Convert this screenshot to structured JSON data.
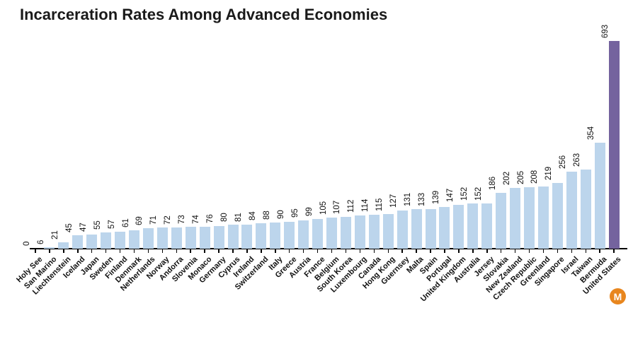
{
  "chart_data": {
    "type": "bar",
    "title": "Incarceration Rates Among Advanced Economies",
    "categories": [
      "Holy See",
      "San Marino",
      "Liechtenstein",
      "Iceland",
      "Japan",
      "Sweden",
      "Finland",
      "Denmark",
      "Netherlands",
      "Norway",
      "Andorra",
      "Slovenia",
      "Monaco",
      "Germany",
      "Cyprus",
      "Ireland",
      "Switzerland",
      "Italy",
      "Greece",
      "Austria",
      "France",
      "Belgium",
      "South Korea",
      "Luxembourg",
      "Canada",
      "Hong Kong",
      "Guernsey",
      "Malta",
      "Spain",
      "Portugal",
      "United Kingdom",
      "Australia",
      "Jersey",
      "Slovakia",
      "New Zealand",
      "Czech Republic",
      "Greenland",
      "Singapore",
      "Israel",
      "Taiwan",
      "Bermuda",
      "United States"
    ],
    "values": [
      0,
      6,
      21,
      45,
      47,
      55,
      57,
      61,
      69,
      71,
      72,
      73,
      74,
      76,
      80,
      81,
      84,
      88,
      90,
      95,
      99,
      105,
      107,
      112,
      114,
      115,
      127,
      131,
      133,
      139,
      147,
      152,
      152,
      186,
      202,
      205,
      208,
      219,
      256,
      263,
      354,
      693
    ],
    "xlabel": "",
    "ylabel": "",
    "ylim": [
      0,
      700
    ],
    "grid": false,
    "legend": "none",
    "bar_color": "#bcd5ec",
    "highlight_category": "United States",
    "highlight_color": "#74639e",
    "value_label_rotation": 90,
    "category_label_rotation": 45
  },
  "logo": {
    "letter": "M",
    "color": "#e8861e"
  }
}
